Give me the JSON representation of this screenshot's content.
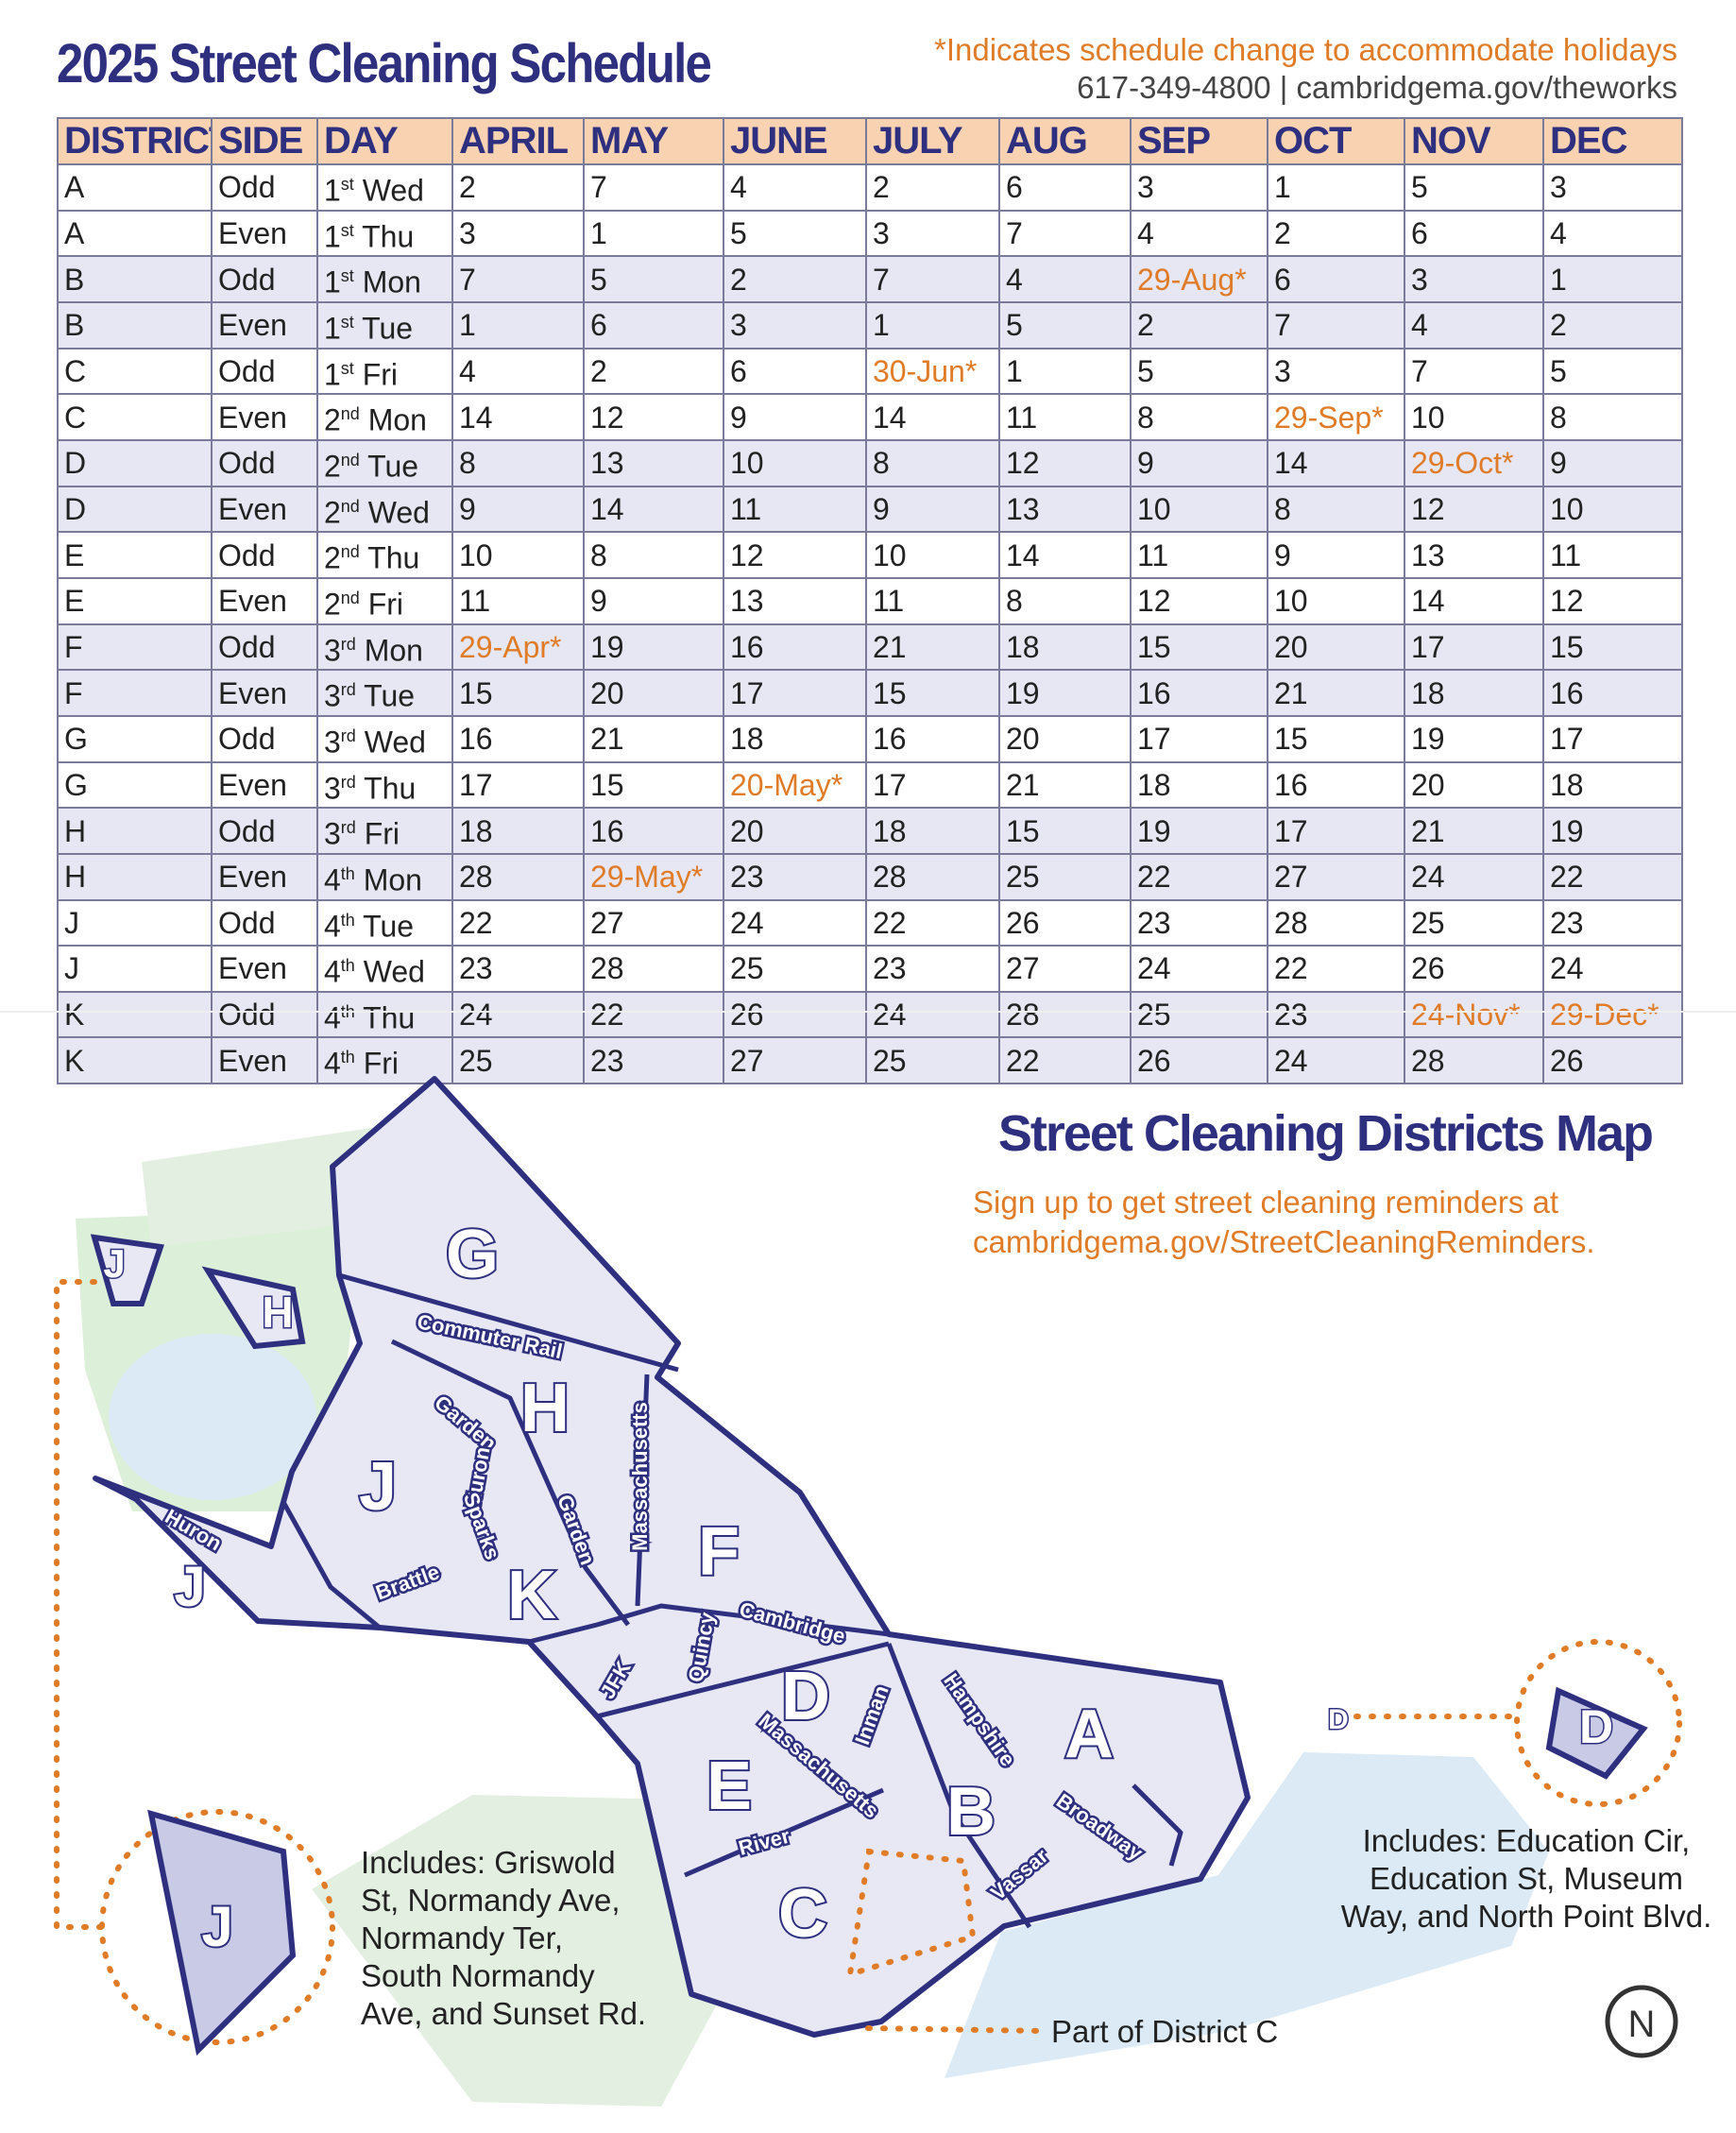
{
  "header": {
    "title": "2025 Street Cleaning Schedule",
    "note": "*Indicates schedule change to accommodate holidays",
    "contact": "617-349-4800 | cambridgema.gov/theworks"
  },
  "table": {
    "columns": [
      "DISTRICT",
      "SIDE",
      "DAY",
      "APRIL",
      "MAY",
      "JUNE",
      "JULY",
      "AUG",
      "SEP",
      "OCT",
      "NOV",
      "DEC"
    ],
    "rows": [
      [
        "A",
        "Odd",
        {
          "ordinal": "1",
          "suffix": "st",
          "weekday": "Wed"
        },
        "2",
        "7",
        "4",
        "2",
        "6",
        "3",
        "1",
        "5",
        "3"
      ],
      [
        "A",
        "Even",
        {
          "ordinal": "1",
          "suffix": "st",
          "weekday": "Thu"
        },
        "3",
        "1",
        "5",
        "3",
        "7",
        "4",
        "2",
        "6",
        "4"
      ],
      [
        "B",
        "Odd",
        {
          "ordinal": "1",
          "suffix": "st",
          "weekday": "Mon"
        },
        "7",
        "5",
        "2",
        "7",
        "4",
        "29-Aug*",
        "6",
        "3",
        "1"
      ],
      [
        "B",
        "Even",
        {
          "ordinal": "1",
          "suffix": "st",
          "weekday": "Tue"
        },
        "1",
        "6",
        "3",
        "1",
        "5",
        "2",
        "7",
        "4",
        "2"
      ],
      [
        "C",
        "Odd",
        {
          "ordinal": "1",
          "suffix": "st",
          "weekday": "Fri"
        },
        "4",
        "2",
        "6",
        "30-Jun*",
        "1",
        "5",
        "3",
        "7",
        "5"
      ],
      [
        "C",
        "Even",
        {
          "ordinal": "2",
          "suffix": "nd",
          "weekday": "Mon"
        },
        "14",
        "12",
        "9",
        "14",
        "11",
        "8",
        "29-Sep*",
        "10",
        "8"
      ],
      [
        "D",
        "Odd",
        {
          "ordinal": "2",
          "suffix": "nd",
          "weekday": "Tue"
        },
        "8",
        "13",
        "10",
        "8",
        "12",
        "9",
        "14",
        "29-Oct*",
        "9"
      ],
      [
        "D",
        "Even",
        {
          "ordinal": "2",
          "suffix": "nd",
          "weekday": "Wed"
        },
        "9",
        "14",
        "11",
        "9",
        "13",
        "10",
        "8",
        "12",
        "10"
      ],
      [
        "E",
        "Odd",
        {
          "ordinal": "2",
          "suffix": "nd",
          "weekday": "Thu"
        },
        "10",
        "8",
        "12",
        "10",
        "14",
        "11",
        "9",
        "13",
        "11"
      ],
      [
        "E",
        "Even",
        {
          "ordinal": "2",
          "suffix": "nd",
          "weekday": "Fri"
        },
        "11",
        "9",
        "13",
        "11",
        "8",
        "12",
        "10",
        "14",
        "12"
      ],
      [
        "F",
        "Odd",
        {
          "ordinal": "3",
          "suffix": "rd",
          "weekday": "Mon"
        },
        "29-Apr*",
        "19",
        "16",
        "21",
        "18",
        "15",
        "20",
        "17",
        "15"
      ],
      [
        "F",
        "Even",
        {
          "ordinal": "3",
          "suffix": "rd",
          "weekday": "Tue"
        },
        "15",
        "20",
        "17",
        "15",
        "19",
        "16",
        "21",
        "18",
        "16"
      ],
      [
        "G",
        "Odd",
        {
          "ordinal": "3",
          "suffix": "rd",
          "weekday": "Wed"
        },
        "16",
        "21",
        "18",
        "16",
        "20",
        "17",
        "15",
        "19",
        "17"
      ],
      [
        "G",
        "Even",
        {
          "ordinal": "3",
          "suffix": "rd",
          "weekday": "Thu"
        },
        "17",
        "15",
        "20-May*",
        "17",
        "21",
        "18",
        "16",
        "20",
        "18"
      ],
      [
        "H",
        "Odd",
        {
          "ordinal": "3",
          "suffix": "rd",
          "weekday": "Fri"
        },
        "18",
        "16",
        "20",
        "18",
        "15",
        "19",
        "17",
        "21",
        "19"
      ],
      [
        "H",
        "Even",
        {
          "ordinal": "4",
          "suffix": "th",
          "weekday": "Mon"
        },
        "28",
        "29-May*",
        "23",
        "28",
        "25",
        "22",
        "27",
        "24",
        "22"
      ],
      [
        "J",
        "Odd",
        {
          "ordinal": "4",
          "suffix": "th",
          "weekday": "Tue"
        },
        "22",
        "27",
        "24",
        "22",
        "26",
        "23",
        "28",
        "25",
        "23"
      ],
      [
        "J",
        "Even",
        {
          "ordinal": "4",
          "suffix": "th",
          "weekday": "Wed"
        },
        "23",
        "28",
        "25",
        "23",
        "27",
        "24",
        "22",
        "26",
        "24"
      ],
      [
        "K",
        "Odd",
        {
          "ordinal": "4",
          "suffix": "th",
          "weekday": "Thu"
        },
        "24",
        "22",
        "26",
        "24",
        "28",
        "25",
        "23",
        "24-Nov*",
        "29-Dec*"
      ],
      [
        "K",
        "Even",
        {
          "ordinal": "4",
          "suffix": "th",
          "weekday": "Fri"
        },
        "25",
        "23",
        "27",
        "25",
        "22",
        "26",
        "24",
        "28",
        "26"
      ]
    ]
  },
  "map": {
    "title": "Street Cleaning Districts Map",
    "subtitle": [
      "Sign up to get street cleaning reminders at",
      "cambridgema.gov/StreetCleaningReminders."
    ],
    "districts": [
      "G",
      "H",
      "J",
      "H",
      "J",
      "J",
      "K",
      "F",
      "D",
      "E",
      "C",
      "B",
      "A",
      "D",
      "D",
      "J"
    ],
    "streets": [
      "Commuter Rail",
      "Garden",
      "Huron",
      "Massachusetts",
      "Sparks",
      "Garden",
      "Huron",
      "Brattle",
      "Cambridge",
      "Quincy",
      "JFK",
      "Inman",
      "Hampshire",
      "Massachusetts",
      "River",
      "Vassar",
      "Broadway"
    ],
    "left_note": [
      "Includes: Griswold",
      "St, Normandy Ave,",
      "Normandy Ter,",
      "South Normandy",
      "Ave, and Sunset Rd."
    ],
    "right_note": [
      "Includes: Education Cir,",
      "Education St, Museum",
      "Way, and North Point Blvd."
    ],
    "part_label": "Part of District C",
    "compass": "N"
  }
}
